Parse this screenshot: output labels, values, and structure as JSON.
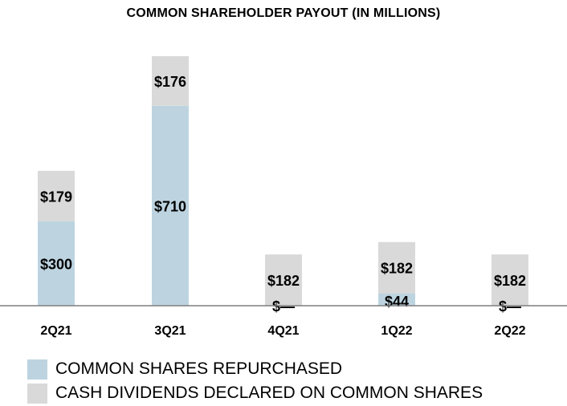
{
  "colors": {
    "repurchased": "#bdd4e0",
    "dividends": "#d9d9d9",
    "axis": "#7f7f7f",
    "text": "#000000"
  },
  "chart_data": {
    "type": "bar",
    "stacked": true,
    "title": "COMMON SHAREHOLDER PAYOUT (IN MILLIONS)",
    "categories": [
      "2Q21",
      "3Q21",
      "4Q21",
      "1Q22",
      "2Q22"
    ],
    "series": [
      {
        "name": "COMMON SHARES REPURCHASED",
        "values": [
          300,
          710,
          0,
          44,
          0
        ],
        "labels": [
          "$300",
          "$710",
          "$—",
          "$44",
          "$—"
        ]
      },
      {
        "name": "CASH DIVIDENDS DECLARED ON COMMON SHARES",
        "values": [
          179,
          176,
          182,
          182,
          182
        ],
        "labels": [
          "$179",
          "$176",
          "$182",
          "$182",
          "$182"
        ]
      }
    ],
    "ylim": [
      0,
      886
    ],
    "grid": false,
    "legend_position": "bottom-left"
  }
}
